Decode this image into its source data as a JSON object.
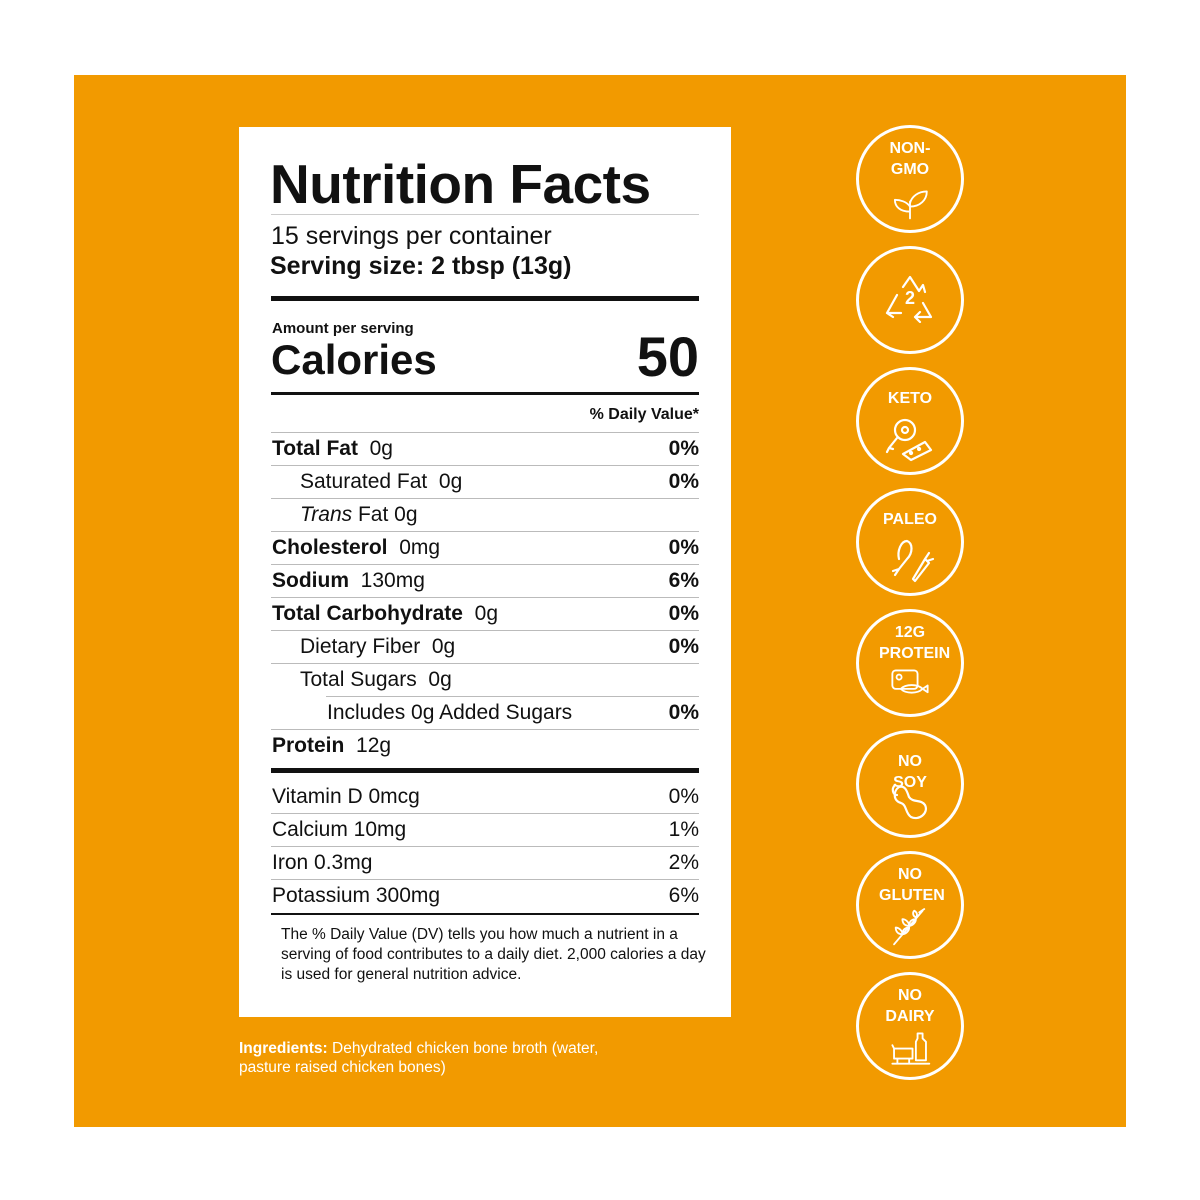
{
  "colors": {
    "background": "#F29A00",
    "panel": "#FFFFFF",
    "text": "#111111"
  },
  "label": {
    "title": "Nutrition Facts",
    "servings": "15 servings per container",
    "serving_size": "Serving size: 2 tbsp (13g)",
    "amount_per_serving": "Amount per serving",
    "calories_label": "Calories",
    "calories_value": "50",
    "dv_header": "% Daily Value*",
    "nutrients": [
      {
        "name": "Total Fat",
        "amount": "0g",
        "dv": "0%",
        "bold": true,
        "indent": 0
      },
      {
        "name": "Saturated Fat",
        "amount": "0g",
        "dv": "0%",
        "bold": false,
        "indent": 1
      },
      {
        "name": "Trans",
        "suffix": "Fat 0g",
        "dv": "",
        "bold": false,
        "indent": 1,
        "italic": true
      },
      {
        "name": "Cholesterol",
        "amount": "0mg",
        "dv": "0%",
        "bold": true,
        "indent": 0
      },
      {
        "name": "Sodium",
        "amount": "130mg",
        "dv": "6%",
        "bold": true,
        "indent": 0
      },
      {
        "name": "Total Carbohydrate",
        "amount": "0g",
        "dv": "0%",
        "bold": true,
        "indent": 0
      },
      {
        "name": "Dietary Fiber",
        "amount": "0g",
        "dv": "0%",
        "bold": false,
        "indent": 1
      },
      {
        "name": "Total Sugars",
        "amount": "0g",
        "dv": "",
        "bold": false,
        "indent": 1
      },
      {
        "name": "Includes 0g Added Sugars",
        "amount": "",
        "dv": "0%",
        "bold": false,
        "indent": 2
      },
      {
        "name": "Protein",
        "amount": "12g",
        "dv": "",
        "bold": true,
        "indent": 0
      }
    ],
    "vitamins": [
      {
        "name": "Vitamin D 0mcg",
        "dv": "0%"
      },
      {
        "name": "Calcium 10mg",
        "dv": "1%"
      },
      {
        "name": "Iron 0.3mg",
        "dv": "2%"
      },
      {
        "name": "Potassium 300mg",
        "dv": "6%"
      }
    ],
    "footnote": "The % Daily Value (DV) tells you how much a nutrient in a serving of food contributes to a daily diet. 2,000 calories a day is used for general nutrition advice."
  },
  "ingredients": {
    "label": "Ingredients:",
    "text": " Dehydrated chicken bone broth (water, pasture raised chicken bones)"
  },
  "badges": [
    {
      "label": "NON-GMO",
      "icon": "sprout-icon"
    },
    {
      "label": "2",
      "icon": "recycle-icon"
    },
    {
      "label": "KETO",
      "icon": "meat-cheese-icon"
    },
    {
      "label": "PALEO",
      "icon": "drumstick-carrot-icon"
    },
    {
      "label": "12G PROTEIN",
      "icon": "protein-foods-icon"
    },
    {
      "label": "NO SOY",
      "icon": "soybean-icon"
    },
    {
      "label": "NO GLUTEN",
      "icon": "wheat-icon"
    },
    {
      "label": "NO DAIRY",
      "icon": "cow-milk-icon"
    }
  ]
}
